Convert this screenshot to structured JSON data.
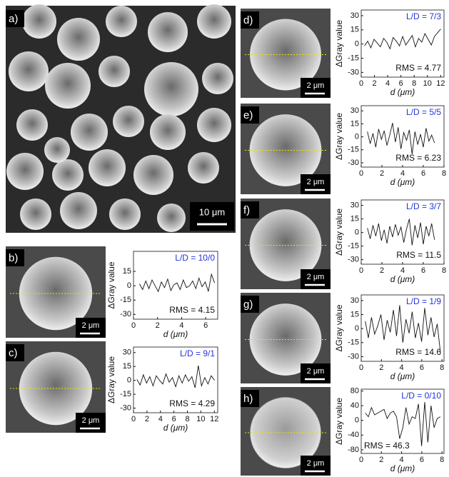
{
  "overview": {
    "panel_label": "a)",
    "scale_bar": "10 μm"
  },
  "chart_data": [
    {
      "type": "line",
      "panel_label": "b)",
      "scale_bar": "2 μm",
      "annotation": "L/D = 10/0",
      "rms_label": "RMS = 4.15",
      "x_label": "d (μm)",
      "y_label": "ΔGray value",
      "xlim": [
        0,
        7
      ],
      "xticks": [
        0,
        2,
        4,
        6
      ],
      "ylim": [
        -35,
        36
      ],
      "yticks": [
        15,
        0,
        -15,
        -30
      ],
      "color": "#111111",
      "x": [
        0.5,
        0.76,
        1.02,
        1.28,
        1.54,
        1.8,
        2.06,
        2.32,
        2.58,
        2.84,
        3.1,
        3.36,
        3.62,
        3.88,
        4.14,
        4.4,
        4.66,
        4.92,
        5.18,
        5.44,
        5.7,
        5.96,
        6.22,
        6.48,
        6.74
      ],
      "values": [
        2,
        -4,
        5,
        -3,
        6,
        0,
        -6,
        4,
        -2,
        7,
        -5,
        1,
        3,
        -4,
        6,
        -2,
        0,
        5,
        -3,
        8,
        -1,
        4,
        -6,
        12,
        3
      ]
    },
    {
      "type": "line",
      "panel_label": "c)",
      "scale_bar": "2 μm",
      "annotation": "L/D = 9/1",
      "rms_label": "RMS = 4.29",
      "x_label": "d (μm)",
      "y_label": "ΔGray value",
      "xlim": [
        0,
        12.5
      ],
      "xticks": [
        0,
        2,
        4,
        6,
        8,
        10,
        12
      ],
      "ylim": [
        -35,
        36
      ],
      "yticks": [
        30,
        15,
        0,
        -15,
        -30
      ],
      "color": "#111111",
      "x": [
        0.5,
        0.98,
        1.46,
        1.94,
        2.42,
        2.9,
        3.38,
        3.86,
        4.34,
        4.82,
        5.3,
        5.78,
        6.26,
        6.74,
        7.22,
        7.7,
        8.18,
        8.66,
        9.14,
        9.62,
        10.1,
        10.58,
        11.06,
        11.54,
        12.02
      ],
      "values": [
        1,
        -5,
        6,
        -3,
        4,
        -6,
        5,
        0,
        -4,
        7,
        -2,
        3,
        -7,
        5,
        -3,
        6,
        -1,
        4,
        -8,
        16,
        -6,
        3,
        -4,
        5,
        0
      ]
    },
    {
      "type": "line",
      "panel_label": "d)",
      "scale_bar": "2 μm",
      "annotation": "L/D = 7/3",
      "rms_label": "RMS = 4.77",
      "x_label": "d (μm)",
      "y_label": "ΔGray value",
      "xlim": [
        0,
        12.5
      ],
      "xticks": [
        0,
        2,
        4,
        6,
        8,
        10,
        12
      ],
      "ylim": [
        -35,
        36
      ],
      "yticks": [
        30,
        15,
        0,
        -15,
        -30
      ],
      "color": "#111111",
      "x": [
        0.5,
        0.98,
        1.46,
        1.94,
        2.42,
        2.9,
        3.38,
        3.86,
        4.34,
        4.82,
        5.3,
        5.78,
        6.26,
        6.74,
        7.22,
        7.7,
        8.18,
        8.66,
        9.14,
        9.62,
        10.1,
        10.58,
        11.06,
        11.54,
        12.02
      ],
      "values": [
        -2,
        3,
        -4,
        5,
        1,
        -3,
        6,
        2,
        -5,
        7,
        3,
        -2,
        8,
        -1,
        4,
        9,
        -3,
        6,
        2,
        11,
        5,
        -1,
        8,
        12,
        16
      ]
    },
    {
      "type": "line",
      "panel_label": "e)",
      "scale_bar": "2 μm",
      "annotation": "L/D = 5/5",
      "rms_label": "RMS = 6.23",
      "x_label": "d (μm)",
      "y_label": "ΔGray value",
      "xlim": [
        0,
        8
      ],
      "xticks": [
        0,
        2,
        4,
        6,
        8
      ],
      "ylim": [
        -35,
        36
      ],
      "yticks": [
        30,
        15,
        0,
        -15,
        -30
      ],
      "color": "#111111",
      "x": [
        0.6,
        0.87,
        1.14,
        1.41,
        1.68,
        1.95,
        2.22,
        2.49,
        2.76,
        3.03,
        3.3,
        3.57,
        3.84,
        4.11,
        4.38,
        4.65,
        4.92,
        5.19,
        5.46,
        5.73,
        6,
        6.27,
        6.54,
        6.81,
        7.08
      ],
      "values": [
        6,
        -8,
        4,
        -12,
        9,
        -3,
        7,
        -10,
        2,
        16,
        -6,
        11,
        -14,
        5,
        -4,
        8,
        -20,
        6,
        -9,
        3,
        -12,
        10,
        -5,
        2,
        -7
      ]
    },
    {
      "type": "line",
      "panel_label": "f)",
      "scale_bar": "2 μm",
      "annotation": "L/D = 3/7",
      "rms_label": "RMS = 11.5",
      "x_label": "d (μm)",
      "y_label": "ΔGray value",
      "xlim": [
        0,
        8
      ],
      "xticks": [
        0,
        2,
        4,
        6,
        8
      ],
      "ylim": [
        -35,
        36
      ],
      "yticks": [
        30,
        15,
        0,
        -15,
        -30
      ],
      "color": "#111111",
      "x": [
        0.6,
        0.87,
        1.14,
        1.41,
        1.68,
        1.95,
        2.22,
        2.49,
        2.76,
        3.03,
        3.3,
        3.57,
        3.84,
        4.11,
        4.38,
        4.65,
        4.92,
        5.19,
        5.46,
        5.73,
        6,
        6.27,
        6.54,
        6.81,
        7.08
      ],
      "values": [
        5,
        -7,
        8,
        -4,
        10,
        -9,
        3,
        -12,
        7,
        -5,
        9,
        -3,
        6,
        -11,
        4,
        15,
        -14,
        8,
        -6,
        11,
        -13,
        7,
        -4,
        10,
        -8
      ]
    },
    {
      "type": "line",
      "panel_label": "g)",
      "scale_bar": "2 μm",
      "annotation": "L/D = 1/9",
      "rms_label": "RMS = 14.6",
      "x_label": "d (μm)",
      "y_label": "ΔGray value",
      "xlim": [
        0,
        8.2
      ],
      "xticks": [
        0,
        2,
        4,
        6,
        8
      ],
      "ylim": [
        -35,
        36
      ],
      "yticks": [
        30,
        15,
        0,
        -15,
        -30
      ],
      "color": "#111111",
      "x": [
        0.4,
        0.71,
        1.02,
        1.33,
        1.64,
        1.95,
        2.26,
        2.57,
        2.88,
        3.19,
        3.5,
        3.81,
        4.12,
        4.43,
        4.74,
        5.05,
        5.36,
        5.67,
        5.98,
        6.29,
        6.6,
        6.91,
        7.22,
        7.53,
        7.84
      ],
      "values": [
        8,
        -10,
        12,
        -6,
        3,
        15,
        -12,
        9,
        -4,
        20,
        -8,
        25,
        -15,
        10,
        -5,
        18,
        -10,
        6,
        -14,
        22,
        -7,
        12,
        -9,
        5,
        -25
      ]
    },
    {
      "type": "line",
      "panel_label": "h)",
      "scale_bar": "2 μm",
      "annotation": "L/D = 0/10",
      "rms_label": "RMS = 46.3",
      "x_label": "d (μm)",
      "y_label": "ΔGray value",
      "xlim": [
        0,
        8.2
      ],
      "xticks": [
        0,
        2,
        4,
        6,
        8
      ],
      "ylim": [
        -90,
        85
      ],
      "yticks": [
        80,
        40,
        0,
        -40,
        -80
      ],
      "color": "#111111",
      "x": [
        0.4,
        0.71,
        1.02,
        1.33,
        1.64,
        1.95,
        2.26,
        2.57,
        2.88,
        3.19,
        3.5,
        3.81,
        4.12,
        4.43,
        4.74,
        5.05,
        5.36,
        5.67,
        5.98,
        6.29,
        6.6,
        6.91,
        7.22,
        7.53,
        7.84
      ],
      "values": [
        20,
        10,
        35,
        15,
        20,
        25,
        30,
        5,
        20,
        25,
        10,
        -50,
        -20,
        35,
        -10,
        10,
        5,
        45,
        -70,
        50,
        -60,
        40,
        -20,
        5,
        10
      ]
    }
  ]
}
